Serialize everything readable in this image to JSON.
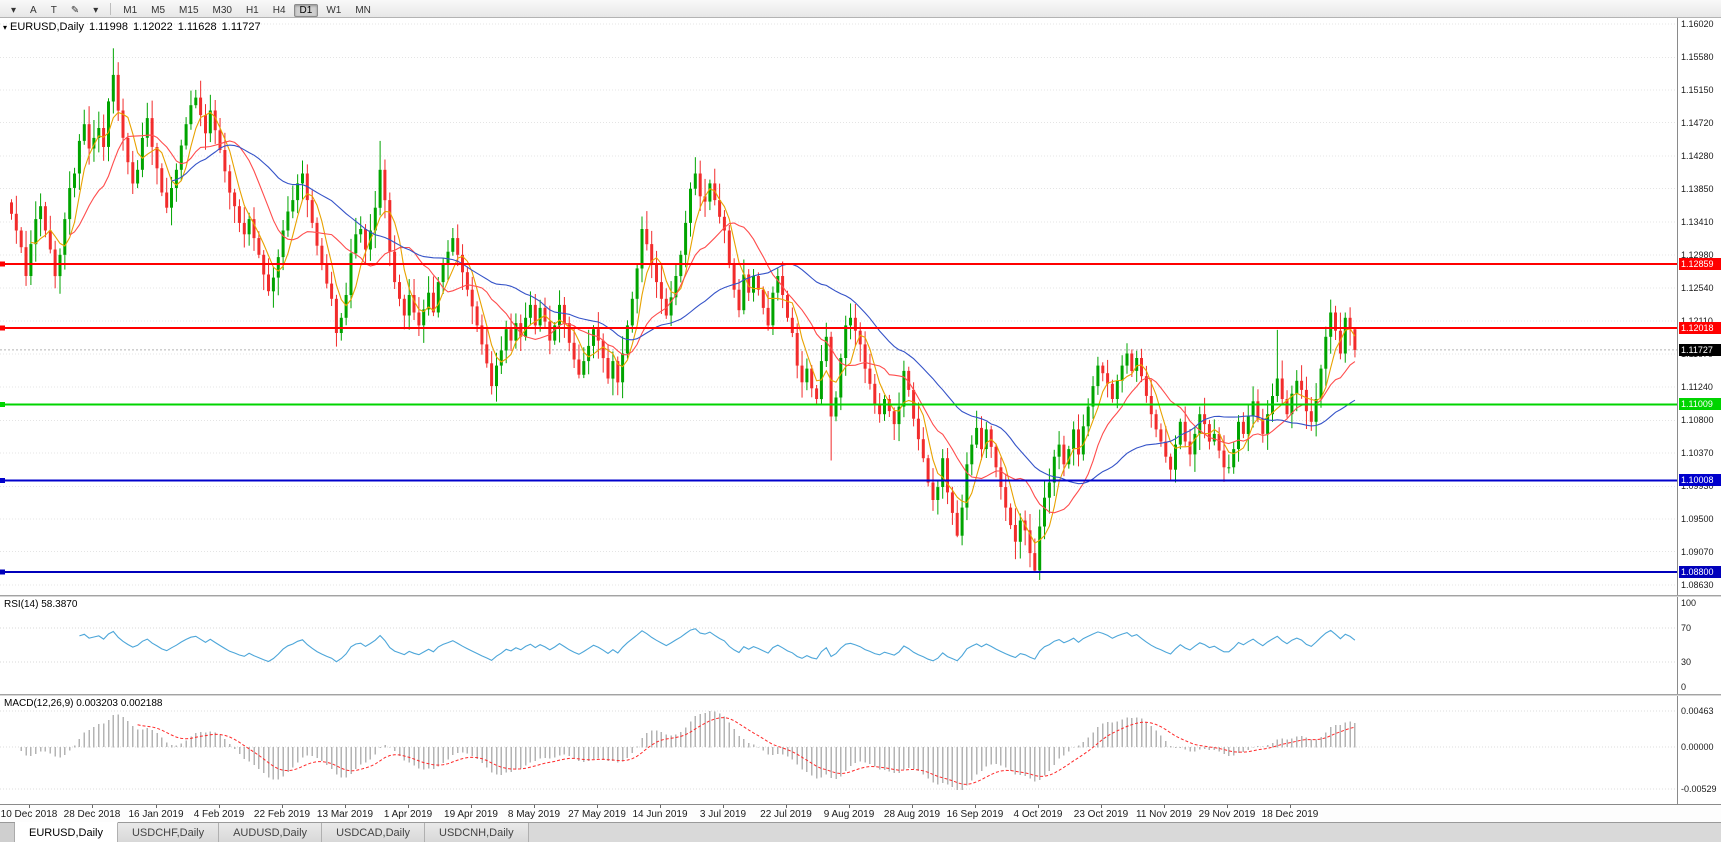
{
  "toolbar": {
    "tools": [
      {
        "name": "charts-dropdown-icon",
        "label": "▾"
      },
      {
        "name": "annotation-a-tool",
        "label": "A"
      },
      {
        "name": "text-tool",
        "label": "T"
      },
      {
        "name": "draw-tool",
        "label": "✎"
      },
      {
        "name": "draw-tool-caret",
        "label": "▾"
      }
    ],
    "timeframes": [
      {
        "label": "M1",
        "active": false
      },
      {
        "label": "M5",
        "active": false
      },
      {
        "label": "M15",
        "active": false
      },
      {
        "label": "M30",
        "active": false
      },
      {
        "label": "H1",
        "active": false
      },
      {
        "label": "H4",
        "active": false
      },
      {
        "label": "D1",
        "active": true
      },
      {
        "label": "W1",
        "active": false
      },
      {
        "label": "MN",
        "active": false
      }
    ]
  },
  "header": {
    "symbol": "EURUSD,Daily",
    "open": "1.11998",
    "high": "1.12022",
    "low": "1.11628",
    "close": "1.11727"
  },
  "rsi": {
    "label": "RSI(14) 58.3870",
    "period": 14,
    "color": "#4da6d9",
    "axis": [
      {
        "label": "100",
        "value": 100
      },
      {
        "label": "70",
        "value": 70
      },
      {
        "label": "30",
        "value": 30
      },
      {
        "label": "0",
        "value": 0
      }
    ],
    "guide_levels": [
      70,
      30
    ]
  },
  "macd": {
    "label": "MACD(12,26,9) 0.003203 0.002188",
    "fast": 12,
    "slow": 26,
    "signal_period": 9,
    "histogram_color": "#b4b4b4",
    "signal_color": "#ff2a2a",
    "scale_max": 0.0055,
    "scale_min": -0.0062,
    "axis": [
      {
        "label": "0.00463",
        "value": 0.00463
      },
      {
        "label": "0.00000",
        "value": 0
      },
      {
        "label": "-0.00529",
        "value": -0.00529
      }
    ]
  },
  "tabs": [
    {
      "label": "EURUSD,Daily",
      "active": true
    },
    {
      "label": "USDCHF,Daily",
      "active": false
    },
    {
      "label": "AUDUSD,Daily",
      "active": false
    },
    {
      "label": "USDCAD,Daily",
      "active": false
    },
    {
      "label": "USDCNH,Daily",
      "active": false
    }
  ],
  "chart_data": {
    "type": "candlestick",
    "symbol": "EURUSD",
    "period": "Daily",
    "up_color": "#00a400",
    "down_color": "#f22c2c",
    "price_axis": {
      "labels": [
        {
          "label": "1.16020",
          "value": 1.1602
        },
        {
          "label": "1.15580",
          "value": 1.1558
        },
        {
          "label": "1.15150",
          "value": 1.1515
        },
        {
          "label": "1.14720",
          "value": 1.1472
        },
        {
          "label": "1.14280",
          "value": 1.1428
        },
        {
          "label": "1.13850",
          "value": 1.1385
        },
        {
          "label": "1.13410",
          "value": 1.1341
        },
        {
          "label": "1.12980",
          "value": 1.1298
        },
        {
          "label": "1.12540",
          "value": 1.1254
        },
        {
          "label": "1.12110",
          "value": 1.1211
        },
        {
          "label": "1.11670",
          "value": 1.1167
        },
        {
          "label": "1.11240",
          "value": 1.1124
        },
        {
          "label": "1.10800",
          "value": 1.108
        },
        {
          "label": "1.10370",
          "value": 1.1037
        },
        {
          "label": "1.09930",
          "value": 1.0993
        },
        {
          "label": "1.09500",
          "value": 1.095
        },
        {
          "label": "1.09070",
          "value": 1.0907
        },
        {
          "label": "1.08630",
          "value": 1.0863
        }
      ]
    },
    "x_axis_labels": [
      "10 Dec 2018",
      "28 Dec 2018",
      "16 Jan 2019",
      "4 Feb 2019",
      "22 Feb 2019",
      "13 Mar 2019",
      "1 Apr 2019",
      "19 Apr 2019",
      "8 May 2019",
      "27 May 2019",
      "14 Jun 2019",
      "3 Jul 2019",
      "22 Jul 2019",
      "9 Aug 2019",
      "28 Aug 2019",
      "16 Sep 2019",
      "4 Oct 2019",
      "23 Oct 2019",
      "11 Nov 2019",
      "29 Nov 2019",
      "18 Dec 2019"
    ],
    "x_label_indices": [
      4,
      17,
      30,
      43,
      56,
      69,
      82,
      95,
      108,
      121,
      134,
      147,
      160,
      173,
      186,
      199,
      212,
      225,
      238,
      251,
      264
    ],
    "closes": [
      1.1352,
      1.133,
      1.1308,
      1.127,
      1.1312,
      1.1345,
      1.1362,
      1.133,
      1.1305,
      1.127,
      1.1298,
      1.1345,
      1.1386,
      1.1405,
      1.1448,
      1.147,
      1.1438,
      1.1452,
      1.1465,
      1.144,
      1.15,
      1.1535,
      1.1488,
      1.1452,
      1.142,
      1.1392,
      1.141,
      1.1452,
      1.1478,
      1.144,
      1.1412,
      1.138,
      1.136,
      1.1386,
      1.141,
      1.1442,
      1.147,
      1.1495,
      1.1505,
      1.1482,
      1.1458,
      1.1488,
      1.1462,
      1.1436,
      1.1408,
      1.138,
      1.1362,
      1.134,
      1.1325,
      1.1345,
      1.132,
      1.1298,
      1.1272,
      1.125,
      1.1268,
      1.1295,
      1.133,
      1.1355,
      1.137,
      1.1392,
      1.1405,
      1.137,
      1.134,
      1.131,
      1.1285,
      1.126,
      1.124,
      1.1195,
      1.1215,
      1.1245,
      1.13,
      1.1325,
      1.1332,
      1.1305,
      1.133,
      1.136,
      1.141,
      1.137,
      1.1302,
      1.1262,
      1.124,
      1.1218,
      1.1245,
      1.1222,
      1.1205,
      1.1226,
      1.1248,
      1.1222,
      1.1262,
      1.1285,
      1.1302,
      1.132,
      1.1298,
      1.1275,
      1.1252,
      1.123,
      1.1205,
      1.118,
      1.1155,
      1.1125,
      1.1152,
      1.1172,
      1.12,
      1.1185,
      1.1208,
      1.119,
      1.1215,
      1.1232,
      1.1205,
      1.1228,
      1.121,
      1.1185,
      1.1205,
      1.1232,
      1.1208,
      1.1182,
      1.116,
      1.114,
      1.1158,
      1.1178,
      1.12,
      1.1185,
      1.1162,
      1.1135,
      1.1158,
      1.113,
      1.1168,
      1.1205,
      1.124,
      1.128,
      1.1332,
      1.1312,
      1.1285,
      1.1262,
      1.124,
      1.1218,
      1.1242,
      1.127,
      1.1298,
      1.134,
      1.1385,
      1.1405,
      1.1375,
      1.1368,
      1.1392,
      1.137,
      1.1348,
      1.133,
      1.1285,
      1.1252,
      1.1225,
      1.1272,
      1.1248,
      1.127,
      1.1252,
      1.1228,
      1.1205,
      1.1248,
      1.127,
      1.1245,
      1.1215,
      1.1195,
      1.1152,
      1.113,
      1.1148,
      1.1122,
      1.1108,
      1.1158,
      1.119,
      1.1085,
      1.111,
      1.1162,
      1.1205,
      1.1215,
      1.1198,
      1.118,
      1.1148,
      1.1128,
      1.1102,
      1.1088,
      1.1108,
      1.1092,
      1.1075,
      1.1098,
      1.1145,
      1.112,
      1.1082,
      1.1055,
      1.103,
      1.0998,
      1.0975,
      1.0992,
      1.103,
      1.0985,
      1.0958,
      1.0928,
      1.0965,
      1.1022,
      1.1048,
      1.107,
      1.1042,
      1.1068,
      1.1045,
      1.1018,
      1.0992,
      1.0965,
      1.0942,
      1.092,
      1.0948,
      1.0935,
      1.0905,
      1.0882,
      1.094,
      1.0978,
      1.0998,
      1.1032,
      1.1048,
      1.1022,
      1.1042,
      1.1068,
      1.1035,
      1.1072,
      1.1098,
      1.1125,
      1.1152,
      1.1142,
      1.1128,
      1.1108,
      1.1132,
      1.1152,
      1.1168,
      1.1145,
      1.1162,
      1.1138,
      1.1112,
      1.1088,
      1.1068,
      1.1052,
      1.1032,
      1.1015,
      1.1048,
      1.1078,
      1.1052,
      1.1035,
      1.1062,
      1.1088,
      1.1075,
      1.1052,
      1.1062,
      1.104,
      1.1018,
      1.1018,
      1.1042,
      1.1078,
      1.1062,
      1.1085,
      1.1105,
      1.1082,
      1.1062,
      1.1088,
      1.1112,
      1.1135,
      1.1108,
      1.1088,
      1.1115,
      1.1132,
      1.112,
      1.1092,
      1.1078,
      1.1108,
      1.1148,
      1.119,
      1.1222,
      1.1198,
      1.1168,
      1.1215,
      1.12,
      1.1173
    ],
    "wick_overrides": {
      "21": {
        "high": 1.157
      },
      "76": {
        "high": 1.1448
      },
      "169": {
        "low": 1.1027
      },
      "195": {
        "low": 1.0926
      },
      "211": {
        "low": 1.0879
      },
      "261": {
        "high": 1.1199
      },
      "272": {
        "high": 1.1239
      }
    },
    "last_candle": {
      "open": 1.11998,
      "high": 1.12022,
      "low": 1.11628,
      "close": 1.11727
    },
    "moving_averages": [
      {
        "period": 5,
        "color": "#e8a200"
      },
      {
        "period": 13,
        "color": "#ff4d4d"
      },
      {
        "period": 34,
        "color": "#3553c8"
      }
    ],
    "levels": [
      {
        "price": 1.12859,
        "label": "1.12859",
        "color": "#ff0000",
        "width": 2
      },
      {
        "price": 1.12018,
        "label": "1.12018",
        "color": "#ff0000",
        "width": 2
      },
      {
        "price": 1.11009,
        "label": "1.11009",
        "color": "#00d400",
        "width": 2
      },
      {
        "price": 1.10008,
        "label": "1.10008",
        "color": "#0000cc",
        "width": 2
      },
      {
        "price": 1.088,
        "label": "1.08800",
        "color": "#0000bb",
        "width": 2
      }
    ],
    "current_price": {
      "value": 1.11727,
      "label": "1.11727",
      "tag_color": "#000000"
    }
  }
}
